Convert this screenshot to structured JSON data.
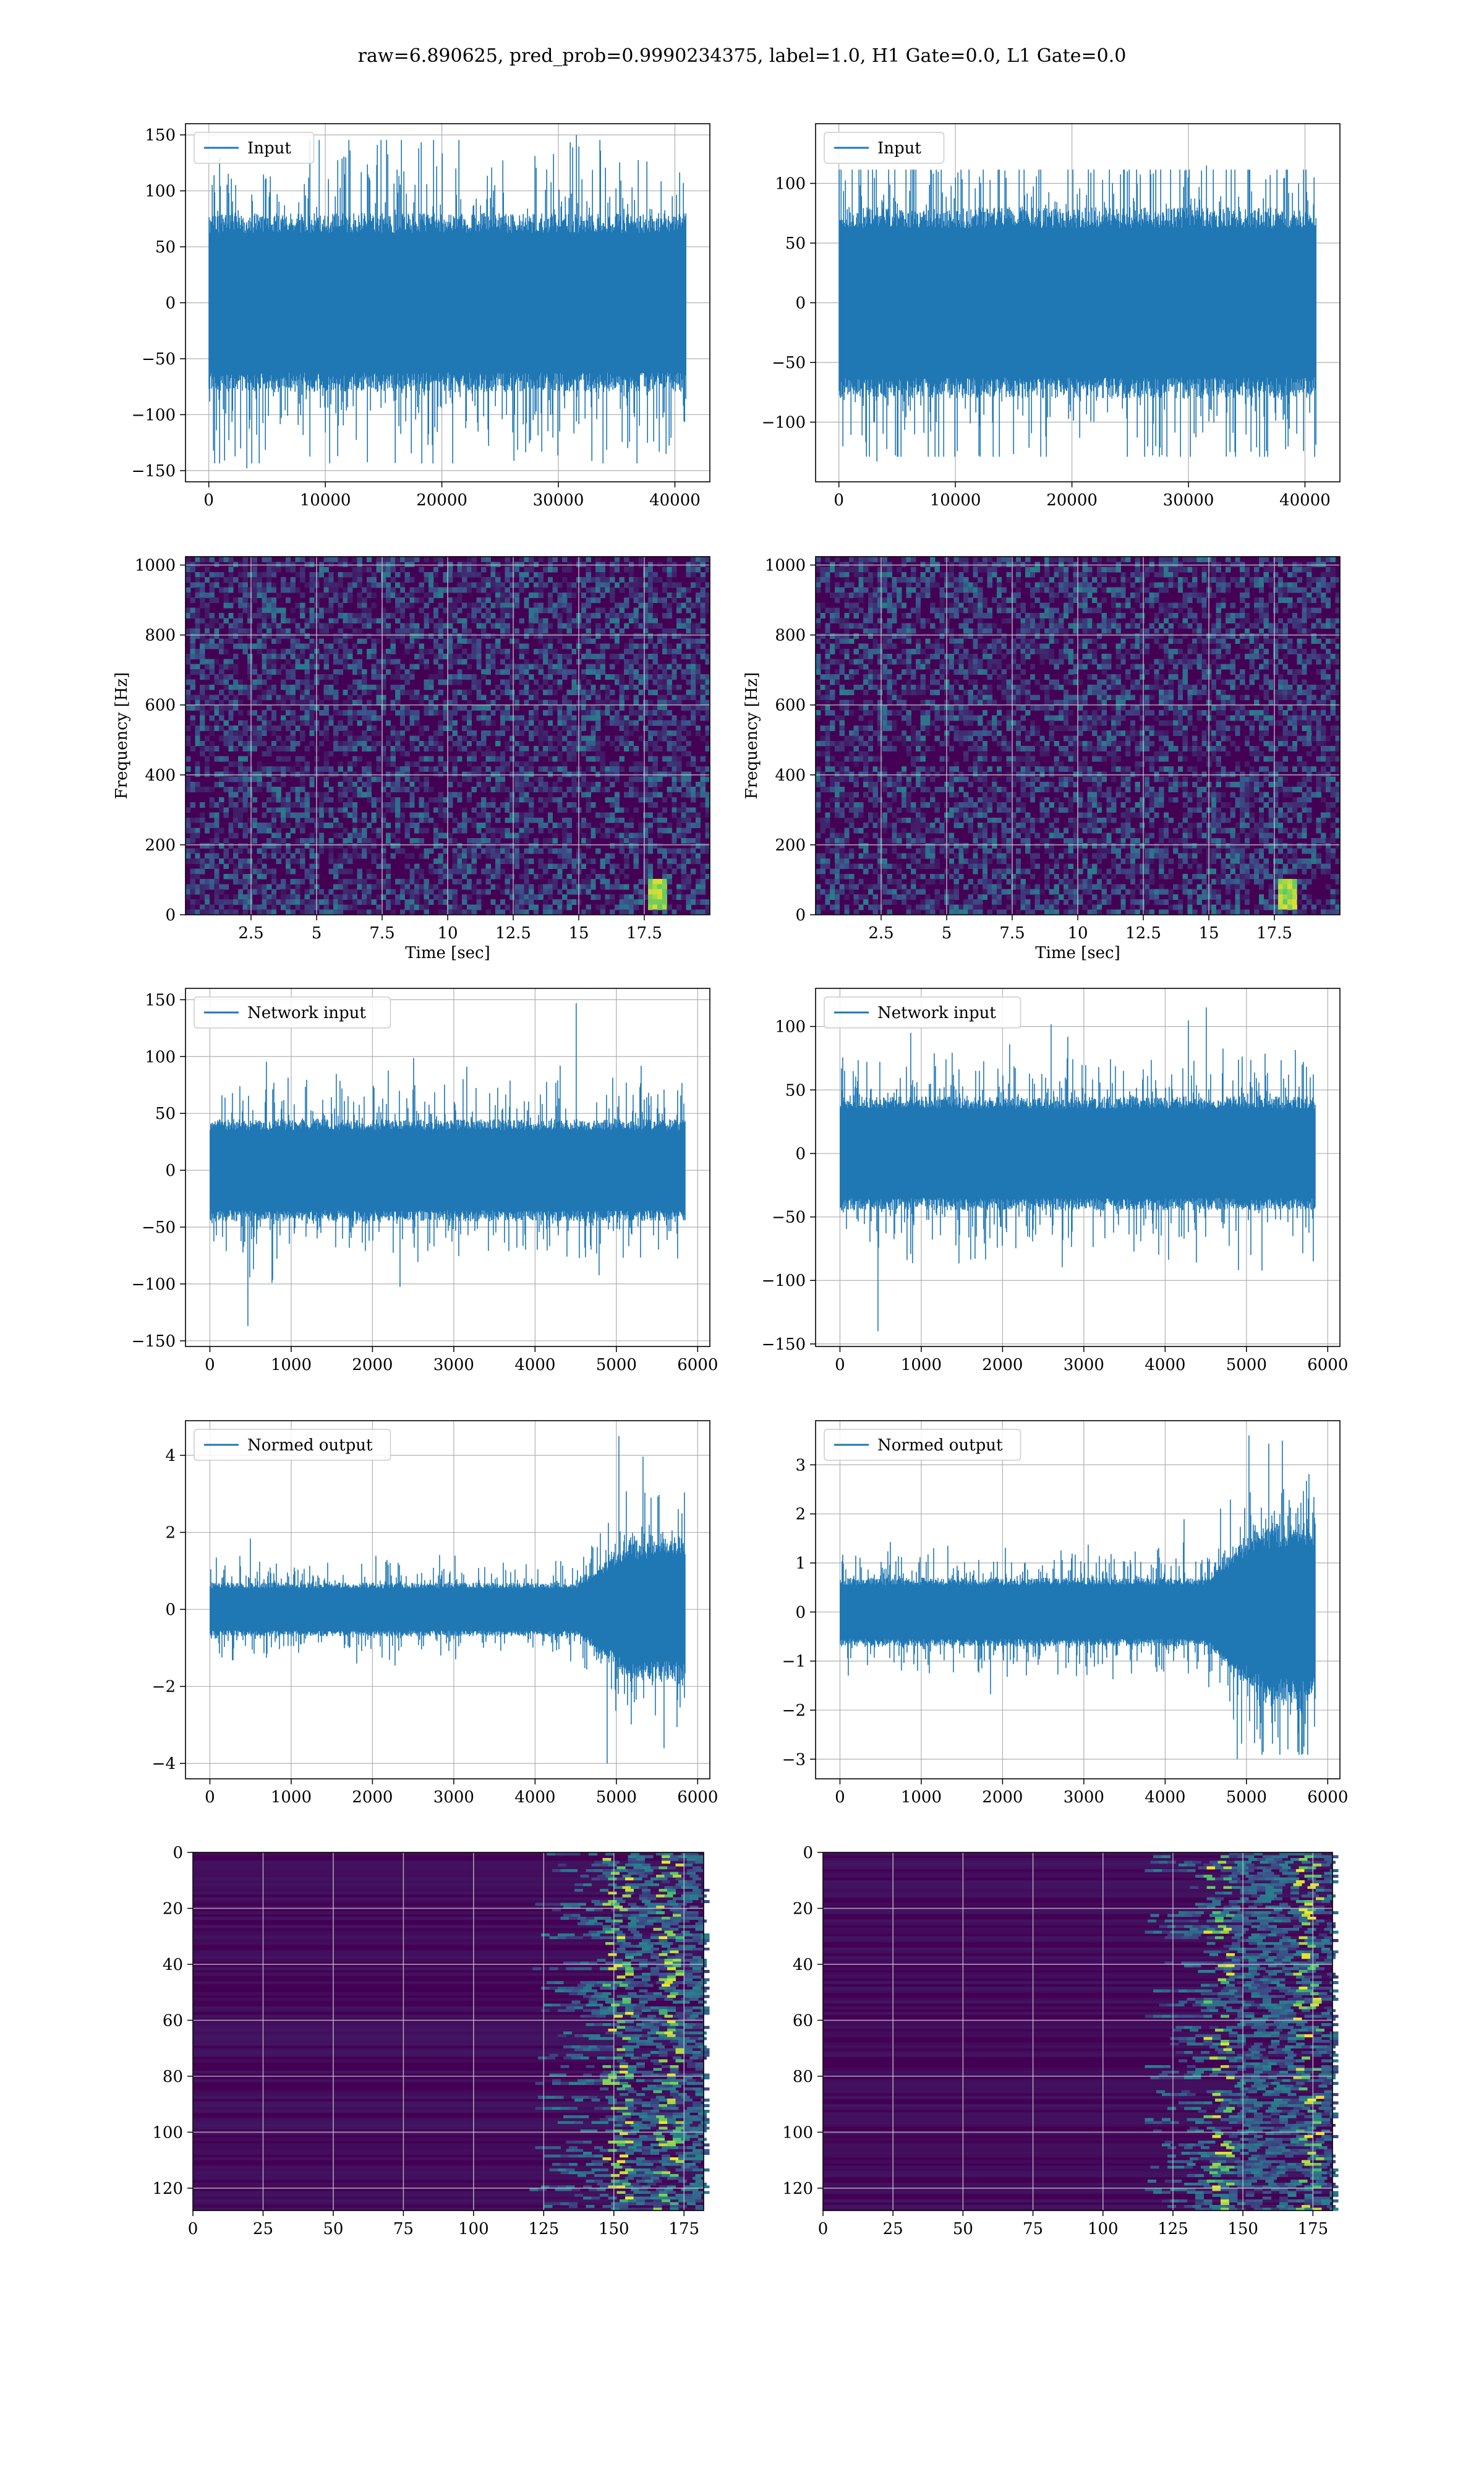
{
  "suptitle": "raw=6.890625, pred_prob=0.9990234375, label=1.0, H1 Gate=0.0, L1 Gate=0.0",
  "colors": {
    "line": "#1f77b4",
    "grid": "#b0b0b0",
    "viridis": [
      "#440154",
      "#3b528b",
      "#21918c",
      "#5ec962",
      "#fde725"
    ]
  },
  "chart_data": [
    {
      "id": "input-h1",
      "type": "line",
      "legend": "Input",
      "legend_position": "upper-left",
      "xlim": [
        -2000,
        43000
      ],
      "ylim": [
        -160,
        160
      ],
      "xticks": [
        0,
        10000,
        20000,
        30000,
        40000
      ],
      "yticks": [
        -150,
        -100,
        -50,
        0,
        50,
        100,
        150
      ],
      "signal": {
        "n": 40960,
        "core_amplitude": 80,
        "max_peak": 150,
        "min_peak": -148,
        "envelope": "flat"
      }
    },
    {
      "id": "input-l1",
      "type": "line",
      "legend": "Input",
      "legend_position": "upper-left",
      "xlim": [
        -2000,
        43000
      ],
      "ylim": [
        -150,
        150
      ],
      "xticks": [
        0,
        10000,
        20000,
        30000,
        40000
      ],
      "yticks": [
        -100,
        -50,
        0,
        50,
        100
      ],
      "signal": {
        "n": 40960,
        "core_amplitude": 80,
        "max_peak": 115,
        "min_peak": -133,
        "envelope": "flat"
      }
    },
    {
      "id": "spectrogram-h1",
      "type": "heatmap",
      "xlabel": "Time [sec]",
      "ylabel": "Frequency [Hz]",
      "xlim": [
        0,
        20
      ],
      "ylim": [
        0,
        1024
      ],
      "xticks": [
        2.5,
        5.0,
        7.5,
        10.0,
        12.5,
        15.0,
        17.5
      ],
      "yticks": [
        0,
        200,
        400,
        600,
        800,
        1000
      ],
      "chirp_time_sec": 18.0,
      "chirp_freq_hz": [
        20,
        100
      ]
    },
    {
      "id": "spectrogram-l1",
      "type": "heatmap",
      "xlabel": "Time [sec]",
      "ylabel": "Frequency [Hz]",
      "xlim": [
        0,
        20
      ],
      "ylim": [
        0,
        1024
      ],
      "xticks": [
        2.5,
        5.0,
        7.5,
        10.0,
        12.5,
        15.0,
        17.5
      ],
      "yticks": [
        0,
        200,
        400,
        600,
        800,
        1000
      ],
      "chirp_time_sec": 18.0,
      "chirp_freq_hz": [
        20,
        100
      ]
    },
    {
      "id": "network-input-h1",
      "type": "line",
      "legend": "Network input",
      "legend_position": "upper-left",
      "xlim": [
        -300,
        6150
      ],
      "ylim": [
        -155,
        160
      ],
      "xticks": [
        0,
        1000,
        2000,
        3000,
        4000,
        5000,
        6000
      ],
      "yticks": [
        -150,
        -100,
        -50,
        0,
        50,
        100,
        150
      ],
      "signal": {
        "n": 5850,
        "core_amplitude": 45,
        "max_peak": 147,
        "min_peak": -137,
        "envelope": "flat"
      }
    },
    {
      "id": "network-input-l1",
      "type": "line",
      "legend": "Network input",
      "legend_position": "upper-left",
      "xlim": [
        -300,
        6150
      ],
      "ylim": [
        -152,
        130
      ],
      "xticks": [
        0,
        1000,
        2000,
        3000,
        4000,
        5000,
        6000
      ],
      "yticks": [
        -150,
        -100,
        -50,
        0,
        50,
        100
      ],
      "signal": {
        "n": 5850,
        "core_amplitude": 45,
        "max_peak": 115,
        "min_peak": -140,
        "envelope": "flat"
      }
    },
    {
      "id": "normed-output-h1",
      "type": "line",
      "legend": "Normed output",
      "legend_position": "upper-left",
      "xlim": [
        -300,
        6150
      ],
      "ylim": [
        -4.4,
        4.9
      ],
      "xticks": [
        0,
        1000,
        2000,
        3000,
        4000,
        5000,
        6000
      ],
      "yticks": [
        -4,
        -2,
        0,
        2,
        4
      ],
      "signal": {
        "n": 5850,
        "core_amplitude": 0.7,
        "max_peak": 4.5,
        "min_peak": -4.0,
        "envelope": "rise",
        "rise_start": 4500
      }
    },
    {
      "id": "normed-output-l1",
      "type": "line",
      "legend": "Normed output",
      "legend_position": "upper-left",
      "xlim": [
        -300,
        6150
      ],
      "ylim": [
        -3.4,
        3.9
      ],
      "xticks": [
        0,
        1000,
        2000,
        3000,
        4000,
        5000,
        6000
      ],
      "yticks": [
        -3,
        -2,
        -1,
        0,
        1,
        2,
        3
      ],
      "signal": {
        "n": 5850,
        "core_amplitude": 0.7,
        "max_peak": 3.6,
        "min_peak": -3.0,
        "envelope": "rise",
        "rise_start": 4500
      }
    },
    {
      "id": "feature-map-h1",
      "type": "heatmap",
      "xlim": [
        0,
        182
      ],
      "ylim": [
        128,
        0
      ],
      "xticks": [
        0,
        25,
        50,
        75,
        100,
        125,
        150,
        175
      ],
      "yticks": [
        0,
        20,
        40,
        60,
        80,
        100,
        120
      ],
      "active_from_x": 120,
      "hot_x": [
        150,
        168
      ]
    },
    {
      "id": "feature-map-l1",
      "type": "heatmap",
      "xlim": [
        0,
        182
      ],
      "ylim": [
        128,
        0
      ],
      "xticks": [
        0,
        25,
        50,
        75,
        100,
        125,
        150,
        175
      ],
      "yticks": [
        0,
        20,
        40,
        60,
        80,
        100,
        120
      ],
      "active_from_x": 115,
      "hot_x": [
        140,
        172
      ]
    }
  ]
}
